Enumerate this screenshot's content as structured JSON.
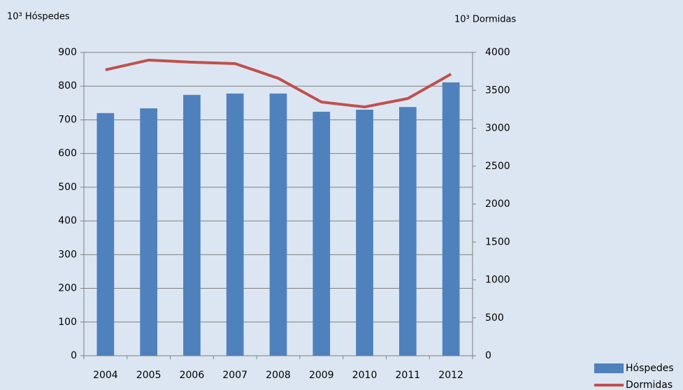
{
  "chart_data": {
    "type": "bar-line",
    "y_label": "10³ Hóspedes",
    "y2_label": "10³ Dormidas",
    "categories": [
      "2004",
      "2005",
      "2006",
      "2007",
      "2008",
      "2009",
      "2010",
      "2011",
      "2012"
    ],
    "series": [
      {
        "name": "Hóspedes",
        "type": "bar",
        "color": "#4f81bd",
        "values": [
          720,
          734,
          774,
          778,
          778,
          724,
          730,
          738,
          811
        ]
      },
      {
        "name": "Dormidas",
        "type": "line",
        "axis": "y2",
        "color": "#c0504d",
        "values": [
          3770,
          3899,
          3871,
          3853,
          3659,
          3346,
          3281,
          3392,
          3714
        ]
      }
    ],
    "ylim": [
      0,
      900
    ],
    "yticks": [
      0,
      100,
      200,
      300,
      400,
      500,
      600,
      700,
      800,
      900
    ],
    "y2lim": [
      0,
      4000
    ],
    "y2ticks": [
      0,
      500,
      1000,
      1500,
      2000,
      2500,
      3000,
      3500,
      4000
    ],
    "grid": true,
    "legend": "bottom-right"
  }
}
